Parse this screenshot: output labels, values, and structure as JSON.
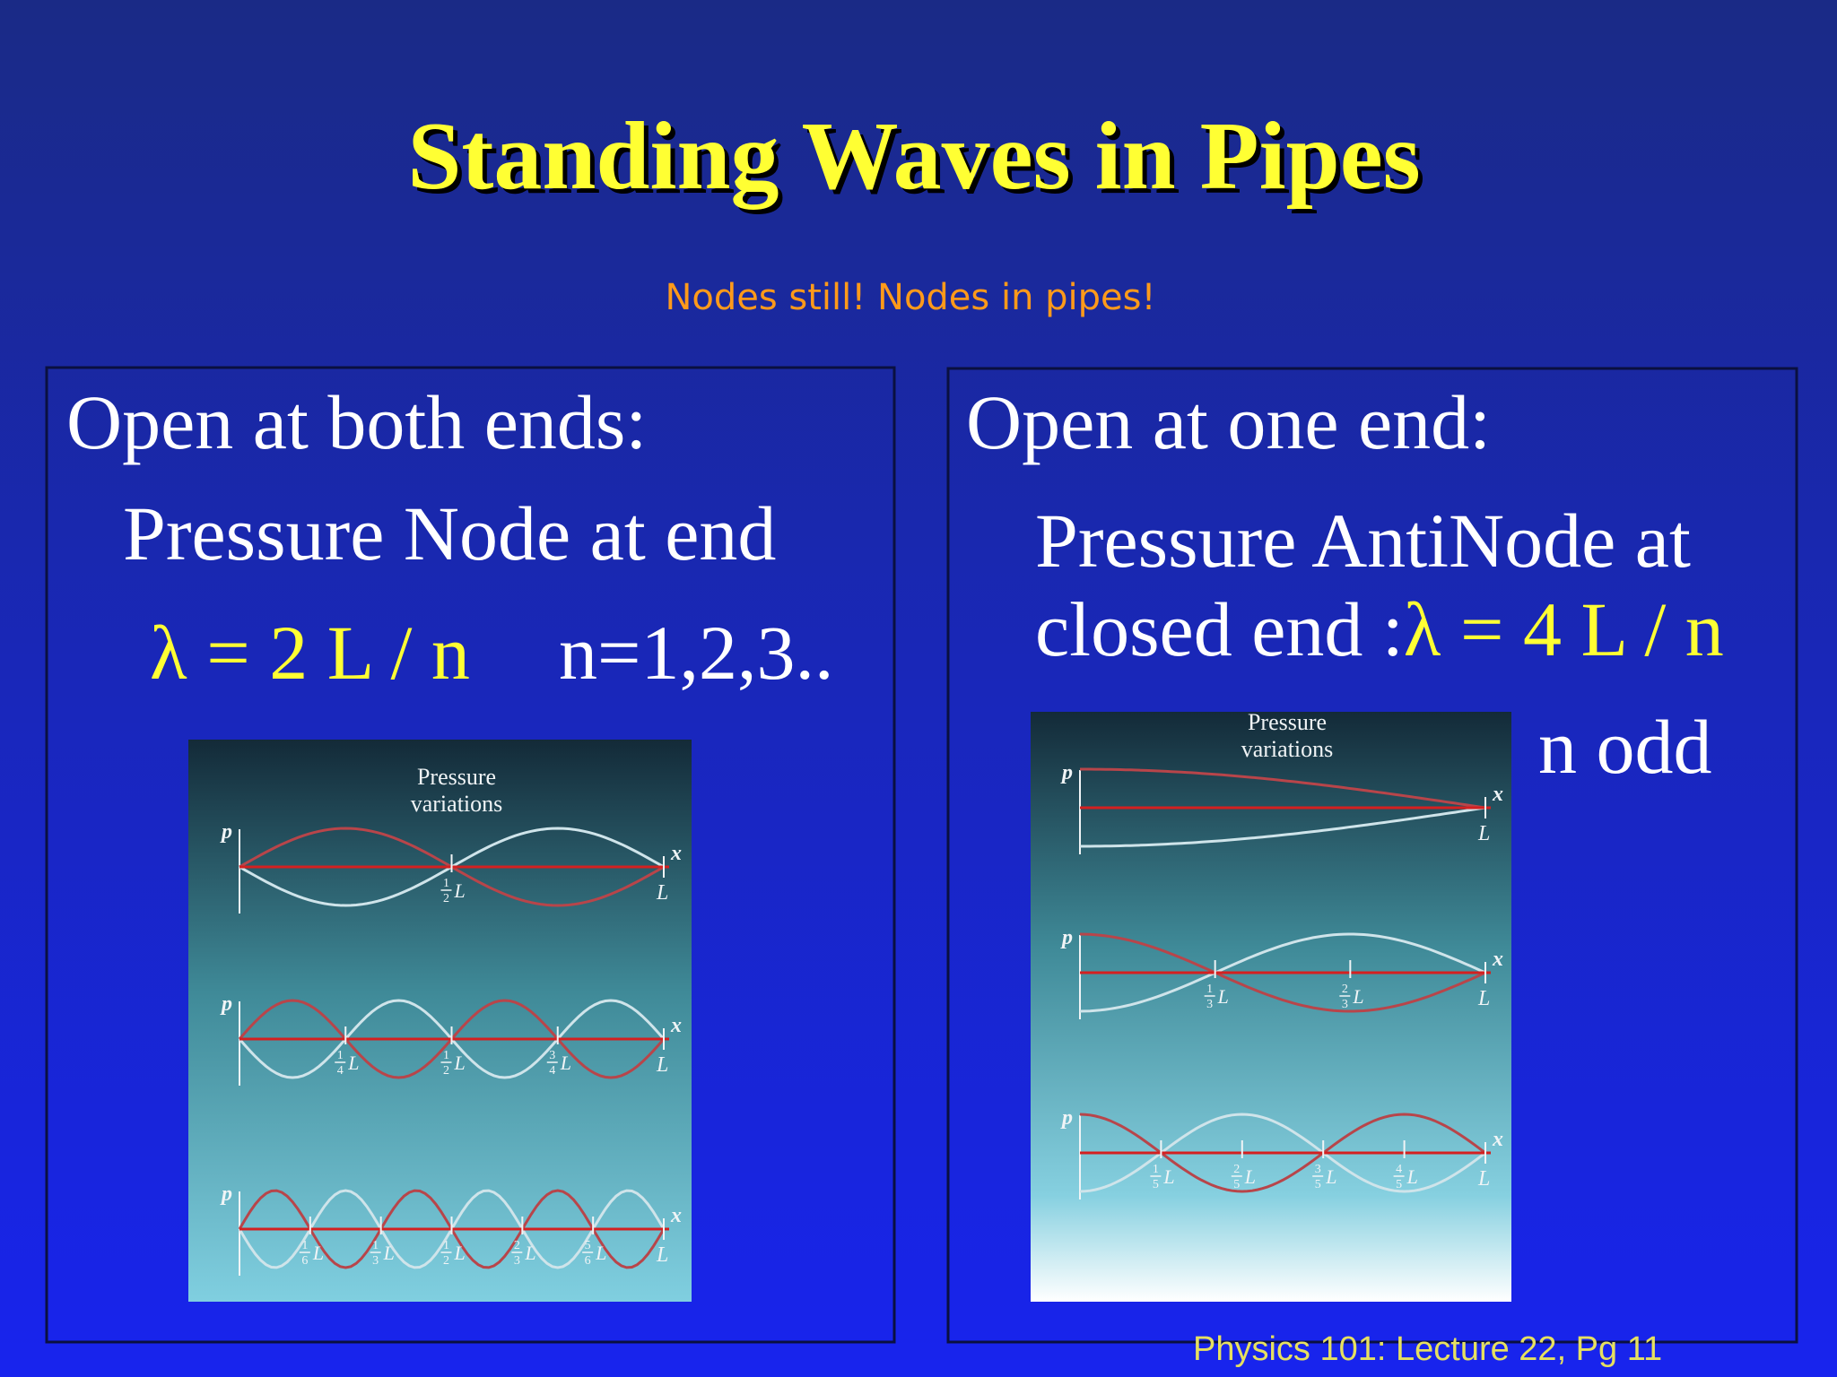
{
  "slide": {
    "title": "Standing Waves in Pipes",
    "subtitle": "Nodes still! Nodes in pipes!",
    "footer": "Physics 101: Lecture 22, Pg 11",
    "panels": [
      {
        "heading": "Open at both ends:",
        "lines": [
          "Pressure Node at end"
        ],
        "formula": "λ = 2 L / n",
        "condition": "n=1,2,3..",
        "figure": {
          "caption": [
            "Pressure",
            "variations"
          ],
          "p_label": "p",
          "x_label": "x",
          "end_label": "L",
          "modes": [
            {
              "ticks": [
                {
                  "num": "1",
                  "den": "2",
                  "unit": "L"
                }
              ]
            },
            {
              "ticks": [
                {
                  "num": "1",
                  "den": "4",
                  "unit": "L"
                },
                {
                  "num": "1",
                  "den": "2",
                  "unit": "L"
                },
                {
                  "num": "3",
                  "den": "4",
                  "unit": "L"
                }
              ]
            },
            {
              "ticks": [
                {
                  "num": "1",
                  "den": "6",
                  "unit": "L"
                },
                {
                  "num": "1",
                  "den": "3",
                  "unit": "L"
                },
                {
                  "num": "1",
                  "den": "2",
                  "unit": "L"
                },
                {
                  "num": "2",
                  "den": "3",
                  "unit": "L"
                },
                {
                  "num": "5",
                  "den": "6",
                  "unit": "L"
                }
              ]
            }
          ]
        }
      },
      {
        "heading": "Open at one end:",
        "lines": [
          "Pressure AntiNode at",
          "closed end :"
        ],
        "formula": "λ = 4 L / n",
        "condition": "n odd",
        "figure": {
          "caption": [
            "Pressure",
            "variations"
          ],
          "p_label": "p",
          "x_label": "x",
          "end_label": "L",
          "modes": [
            {
              "ticks": []
            },
            {
              "ticks": [
                {
                  "num": "1",
                  "den": "3",
                  "unit": "L"
                },
                {
                  "num": "2",
                  "den": "3",
                  "unit": "L"
                }
              ]
            },
            {
              "ticks": [
                {
                  "num": "1",
                  "den": "5",
                  "unit": "L"
                },
                {
                  "num": "2",
                  "den": "5",
                  "unit": "L"
                },
                {
                  "num": "3",
                  "den": "5",
                  "unit": "L"
                },
                {
                  "num": "4",
                  "den": "5",
                  "unit": "L"
                }
              ]
            }
          ]
        }
      }
    ]
  }
}
